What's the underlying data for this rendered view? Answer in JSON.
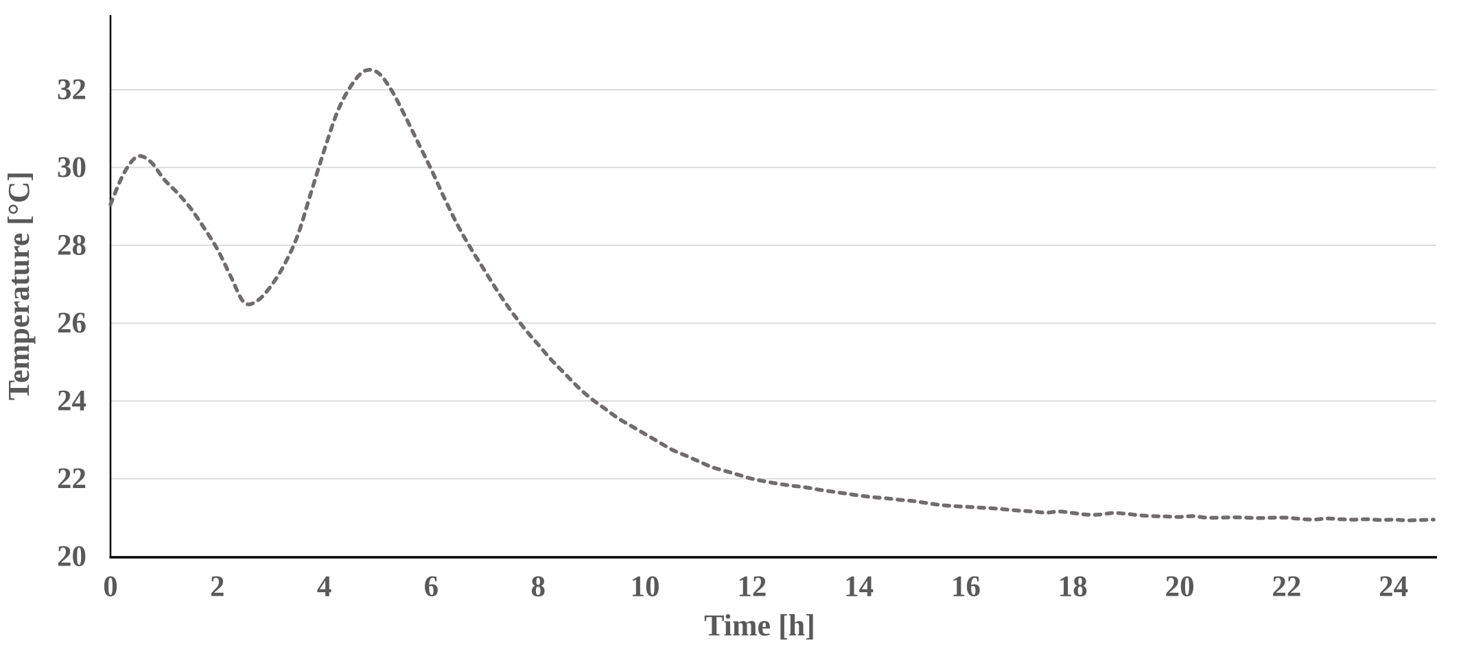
{
  "page": {
    "background": "#ffffff"
  },
  "colors": {
    "series_line": "#706c6c",
    "gridline": "#d9d9d9",
    "axis_line": "#000000",
    "label_text": "#595959"
  },
  "chart_data": {
    "type": "line",
    "title": "",
    "xlabel": "Time [h]",
    "ylabel": "Temperature [°C]",
    "x_ticks": [
      0,
      2,
      4,
      6,
      8,
      10,
      12,
      14,
      16,
      18,
      20,
      22,
      24
    ],
    "y_ticks": [
      20,
      22,
      24,
      26,
      28,
      30,
      32
    ],
    "xlim": [
      0,
      24.8
    ],
    "ylim": [
      20,
      33.9
    ],
    "grid": "horizontal-only",
    "legend": "none",
    "line_style": {
      "dashed": true,
      "width": 5.5,
      "color": "#706c6c"
    },
    "series": [
      {
        "name": "Temperature",
        "points": [
          [
            0.0,
            29.05
          ],
          [
            0.25,
            29.85
          ],
          [
            0.5,
            30.28
          ],
          [
            0.75,
            30.15
          ],
          [
            1.0,
            29.7
          ],
          [
            1.25,
            29.35
          ],
          [
            1.5,
            28.95
          ],
          [
            1.75,
            28.45
          ],
          [
            2.0,
            27.9
          ],
          [
            2.25,
            27.2
          ],
          [
            2.5,
            26.53
          ],
          [
            2.75,
            26.58
          ],
          [
            3.0,
            26.95
          ],
          [
            3.25,
            27.5
          ],
          [
            3.5,
            28.25
          ],
          [
            3.75,
            29.35
          ],
          [
            4.0,
            30.45
          ],
          [
            4.25,
            31.45
          ],
          [
            4.5,
            32.1
          ],
          [
            4.75,
            32.48
          ],
          [
            5.0,
            32.44
          ],
          [
            5.25,
            32.0
          ],
          [
            5.5,
            31.35
          ],
          [
            5.75,
            30.65
          ],
          [
            6.0,
            29.95
          ],
          [
            6.25,
            29.2
          ],
          [
            6.5,
            28.5
          ],
          [
            6.75,
            27.9
          ],
          [
            7.0,
            27.35
          ],
          [
            7.25,
            26.8
          ],
          [
            7.5,
            26.3
          ],
          [
            7.75,
            25.85
          ],
          [
            8.0,
            25.45
          ],
          [
            8.25,
            25.05
          ],
          [
            8.5,
            24.7
          ],
          [
            8.75,
            24.35
          ],
          [
            9.0,
            24.05
          ],
          [
            9.25,
            23.8
          ],
          [
            9.5,
            23.55
          ],
          [
            9.75,
            23.35
          ],
          [
            10.0,
            23.15
          ],
          [
            10.25,
            22.95
          ],
          [
            10.5,
            22.75
          ],
          [
            10.75,
            22.6
          ],
          [
            11.0,
            22.45
          ],
          [
            11.25,
            22.3
          ],
          [
            11.5,
            22.2
          ],
          [
            11.75,
            22.1
          ],
          [
            12.0,
            22.0
          ],
          [
            12.25,
            21.93
          ],
          [
            12.5,
            21.87
          ],
          [
            12.75,
            21.82
          ],
          [
            13.0,
            21.78
          ],
          [
            13.25,
            21.72
          ],
          [
            13.5,
            21.67
          ],
          [
            13.75,
            21.62
          ],
          [
            14.0,
            21.57
          ],
          [
            14.25,
            21.53
          ],
          [
            14.5,
            21.5
          ],
          [
            14.75,
            21.46
          ],
          [
            15.0,
            21.43
          ],
          [
            15.25,
            21.38
          ],
          [
            15.5,
            21.33
          ],
          [
            15.75,
            21.3
          ],
          [
            16.0,
            21.28
          ],
          [
            16.25,
            21.26
          ],
          [
            16.5,
            21.24
          ],
          [
            16.75,
            21.21
          ],
          [
            17.0,
            21.18
          ],
          [
            17.25,
            21.16
          ],
          [
            17.5,
            21.13
          ],
          [
            17.75,
            21.16
          ],
          [
            18.0,
            21.12
          ],
          [
            18.25,
            21.08
          ],
          [
            18.5,
            21.08
          ],
          [
            18.75,
            21.12
          ],
          [
            19.0,
            21.1
          ],
          [
            19.25,
            21.06
          ],
          [
            19.5,
            21.04
          ],
          [
            19.75,
            21.03
          ],
          [
            20.0,
            21.02
          ],
          [
            20.25,
            21.04
          ],
          [
            20.5,
            21.0
          ],
          [
            20.75,
            21.0
          ],
          [
            21.0,
            21.01
          ],
          [
            21.25,
            21.0
          ],
          [
            21.5,
            20.99
          ],
          [
            21.75,
            21.0
          ],
          [
            22.0,
            21.0
          ],
          [
            22.25,
            20.97
          ],
          [
            22.5,
            20.95
          ],
          [
            22.75,
            20.98
          ],
          [
            23.0,
            20.96
          ],
          [
            23.25,
            20.95
          ],
          [
            23.5,
            20.96
          ],
          [
            23.75,
            20.94
          ],
          [
            24.0,
            20.95
          ],
          [
            24.25,
            20.93
          ],
          [
            24.5,
            20.94
          ],
          [
            24.75,
            20.95
          ]
        ]
      }
    ]
  }
}
